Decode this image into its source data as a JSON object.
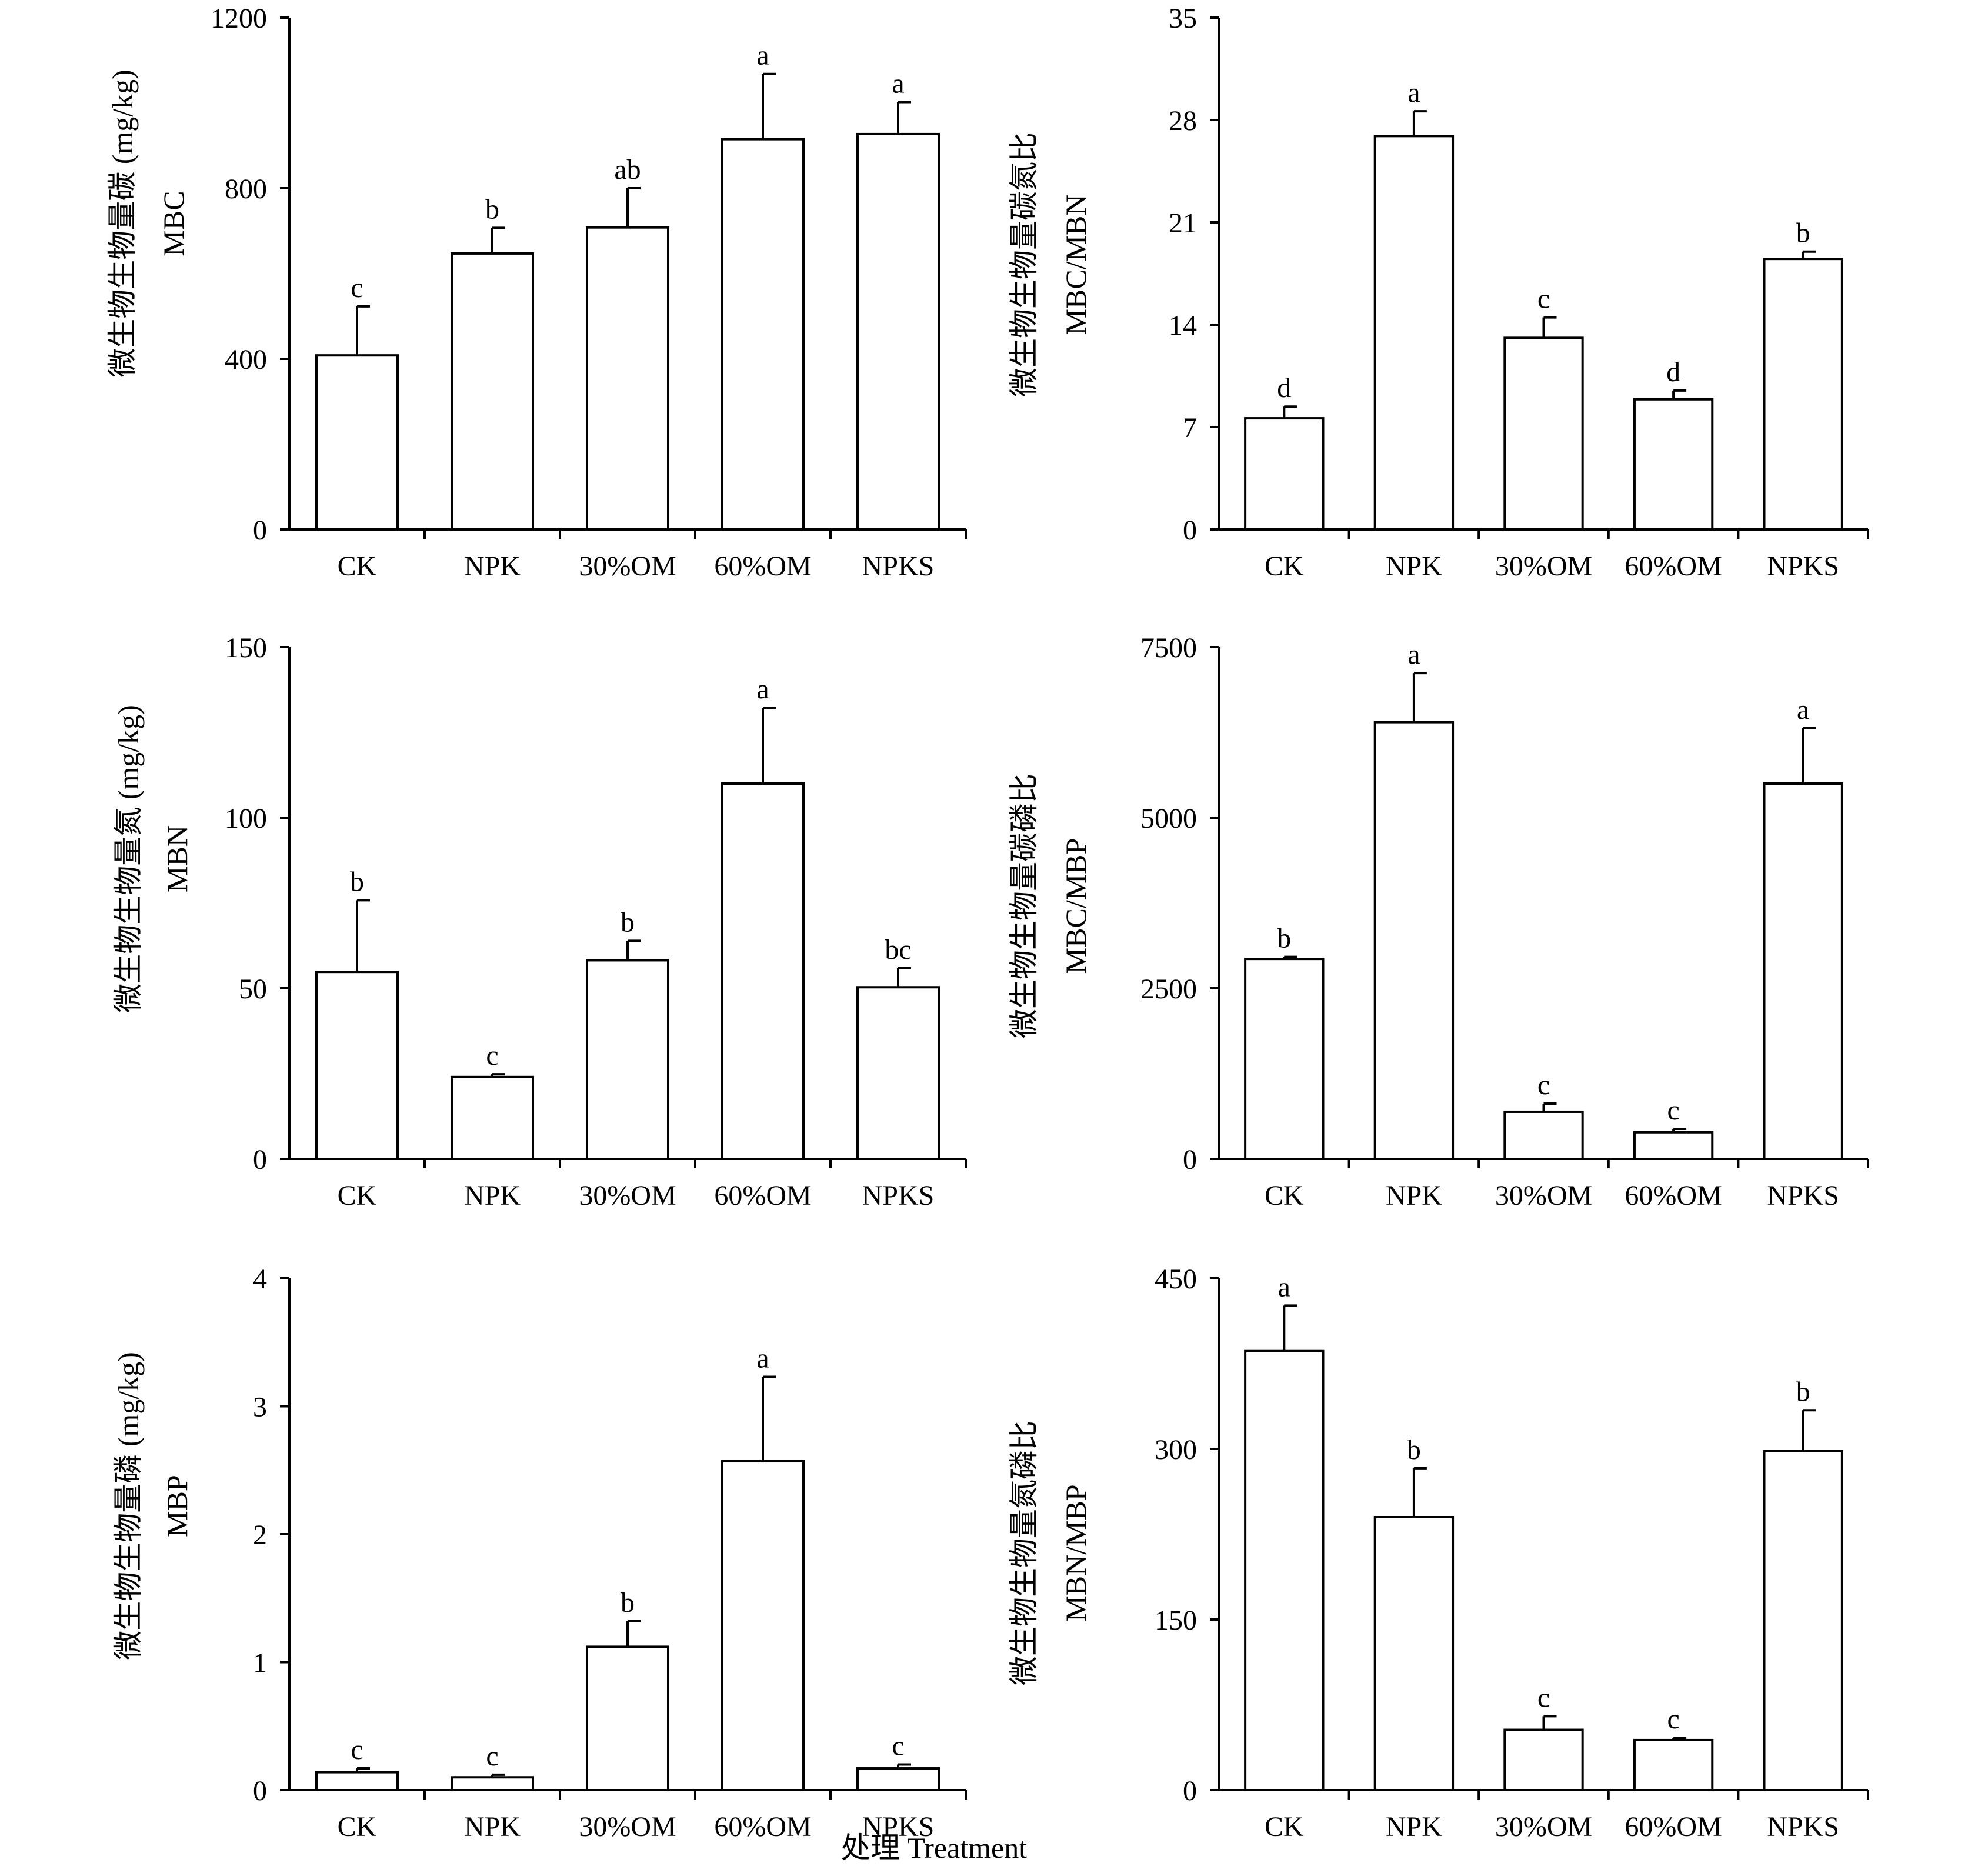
{
  "figure": {
    "shared_xlabel": "处理 Treatment"
  },
  "chart_data": [
    {
      "id": "mbc",
      "type": "bar",
      "categories": [
        "CK",
        "NPK",
        "30%OM",
        "60%OM",
        "NPKS"
      ],
      "values": [
        408,
        647,
        708,
        915,
        927
      ],
      "errors": [
        115,
        60,
        92,
        153,
        75
      ],
      "letters": [
        "c",
        "b",
        "ab",
        "a",
        "a"
      ],
      "ylabel_cn": "微生物生物量碳 (mg/kg)",
      "ylabel_en": "MBC",
      "xlabel": "",
      "ylim": [
        0,
        1200
      ],
      "yticks": [
        0,
        400,
        800,
        1200
      ],
      "ytick_labels": [
        "0",
        "400",
        "800",
        "1200"
      ],
      "grid": false,
      "legend": "none"
    },
    {
      "id": "mbc-mbn",
      "type": "bar",
      "categories": [
        "CK",
        "NPK",
        "30%OM",
        "60%OM",
        "NPKS"
      ],
      "values": [
        7.6,
        26.9,
        13.1,
        8.9,
        18.5
      ],
      "errors": [
        0.8,
        1.7,
        1.4,
        0.6,
        0.5
      ],
      "letters": [
        "d",
        "a",
        "c",
        "d",
        "b"
      ],
      "ylabel_cn": "微生物生物量碳氮比",
      "ylabel_en": "MBC/MBN",
      "xlabel": "",
      "ylim": [
        0,
        35
      ],
      "yticks": [
        0,
        7,
        14,
        21,
        28,
        35
      ],
      "ytick_labels": [
        "0",
        "7",
        "14",
        "21",
        "28",
        "35"
      ],
      "grid": false,
      "legend": "none"
    },
    {
      "id": "mbn",
      "type": "bar",
      "categories": [
        "CK",
        "NPK",
        "30%OM",
        "60%OM",
        "NPKS"
      ],
      "values": [
        54.8,
        24,
        58.2,
        110,
        50.3
      ],
      "errors": [
        21,
        0.8,
        5.7,
        22.2,
        5.6
      ],
      "letters": [
        "b",
        "c",
        "b",
        "a",
        "bc"
      ],
      "ylabel_cn": "微生物生物量氮 (mg/kg)",
      "ylabel_en": "MBN",
      "xlabel": "",
      "ylim": [
        0,
        150
      ],
      "yticks": [
        0,
        50,
        100,
        150
      ],
      "ytick_labels": [
        "0",
        "50",
        "100",
        "150"
      ],
      "grid": false,
      "legend": "none"
    },
    {
      "id": "mbc-mbp",
      "type": "bar",
      "categories": [
        "CK",
        "NPK",
        "30%OM",
        "60%OM",
        "NPKS"
      ],
      "values": [
        2930,
        6400,
        690,
        390,
        5500
      ],
      "errors": [
        30,
        720,
        120,
        50,
        810
      ],
      "letters": [
        "b",
        "a",
        "c",
        "c",
        "a"
      ],
      "ylabel_cn": "微生物生物量碳磷比",
      "ylabel_en": "MBC/MBP",
      "xlabel": "",
      "ylim": [
        0,
        7500
      ],
      "yticks": [
        0,
        2500,
        5000,
        7500
      ],
      "ytick_labels": [
        "0",
        "2500",
        "5000",
        "7500"
      ],
      "grid": false,
      "legend": "none"
    },
    {
      "id": "mbp",
      "type": "bar",
      "categories": [
        "CK",
        "NPK",
        "30%OM",
        "60%OM",
        "NPKS"
      ],
      "values": [
        0.14,
        0.1,
        1.12,
        2.57,
        0.17
      ],
      "errors": [
        0.03,
        0.02,
        0.2,
        0.66,
        0.03
      ],
      "letters": [
        "c",
        "c",
        "b",
        "a",
        "c"
      ],
      "ylabel_cn": "微生物生物量磷 (mg/kg)",
      "ylabel_en": "MBP",
      "xlabel": "",
      "ylim": [
        0,
        4
      ],
      "yticks": [
        0,
        1,
        2,
        3,
        4
      ],
      "ytick_labels": [
        "0",
        "1",
        "2",
        "3",
        "4"
      ],
      "grid": false,
      "legend": "none"
    },
    {
      "id": "mbn-mbp",
      "type": "bar",
      "categories": [
        "CK",
        "NPK",
        "30%OM",
        "60%OM",
        "NPKS"
      ],
      "values": [
        386,
        240,
        53,
        44,
        298
      ],
      "errors": [
        40,
        43,
        12,
        2,
        36
      ],
      "letters": [
        "a",
        "b",
        "c",
        "c",
        "b"
      ],
      "ylabel_cn": "微生物生物量氮磷比",
      "ylabel_en": "MBN/MBP",
      "xlabel": "",
      "ylim": [
        0,
        450
      ],
      "yticks": [
        0,
        150,
        300,
        450
      ],
      "ytick_labels": [
        "0",
        "150",
        "300",
        "450"
      ],
      "grid": false,
      "legend": "none"
    }
  ]
}
